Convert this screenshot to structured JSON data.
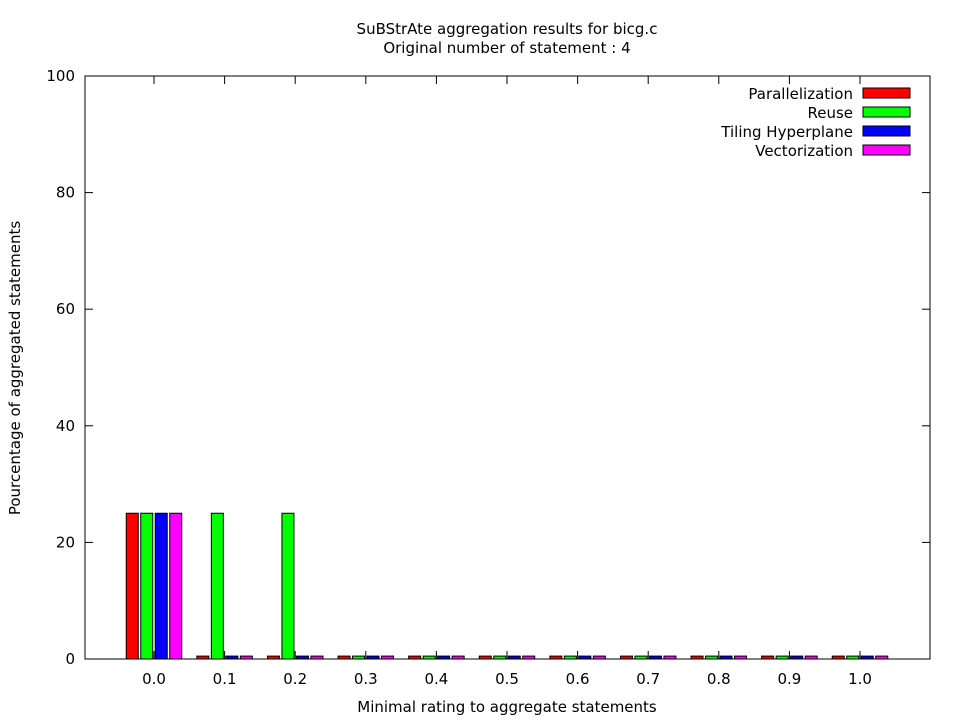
{
  "chart_data": {
    "type": "bar",
    "title": "SuBStrAte aggregation results for bicg.c",
    "subtitle": "Original number of statement : 4",
    "xlabel": "Minimal rating to aggregate statements",
    "ylabel": "Pourcentage of aggregated statements",
    "ylim": [
      0,
      100
    ],
    "yticks": [
      0,
      20,
      40,
      60,
      80,
      100
    ],
    "categories": [
      "0.0",
      "0.1",
      "0.2",
      "0.3",
      "0.4",
      "0.5",
      "0.6",
      "0.7",
      "0.8",
      "0.9",
      "1.0"
    ],
    "series": [
      {
        "name": "Parallelization",
        "color": "#ff0000",
        "values": [
          25,
          0.5,
          0.5,
          0.5,
          0.5,
          0.5,
          0.5,
          0.5,
          0.5,
          0.5,
          0.5
        ]
      },
      {
        "name": "Reuse",
        "color": "#00ff00",
        "values": [
          25,
          25,
          25,
          0.5,
          0.5,
          0.5,
          0.5,
          0.5,
          0.5,
          0.5,
          0.5
        ]
      },
      {
        "name": "Tiling Hyperplane",
        "color": "#0000ff",
        "values": [
          25,
          0.5,
          0.5,
          0.5,
          0.5,
          0.5,
          0.5,
          0.5,
          0.5,
          0.5,
          0.5
        ]
      },
      {
        "name": "Vectorization",
        "color": "#ff00ff",
        "values": [
          25,
          0.5,
          0.5,
          0.5,
          0.5,
          0.5,
          0.5,
          0.5,
          0.5,
          0.5,
          0.5
        ]
      }
    ],
    "legend_position": "top-right",
    "grid": false
  }
}
